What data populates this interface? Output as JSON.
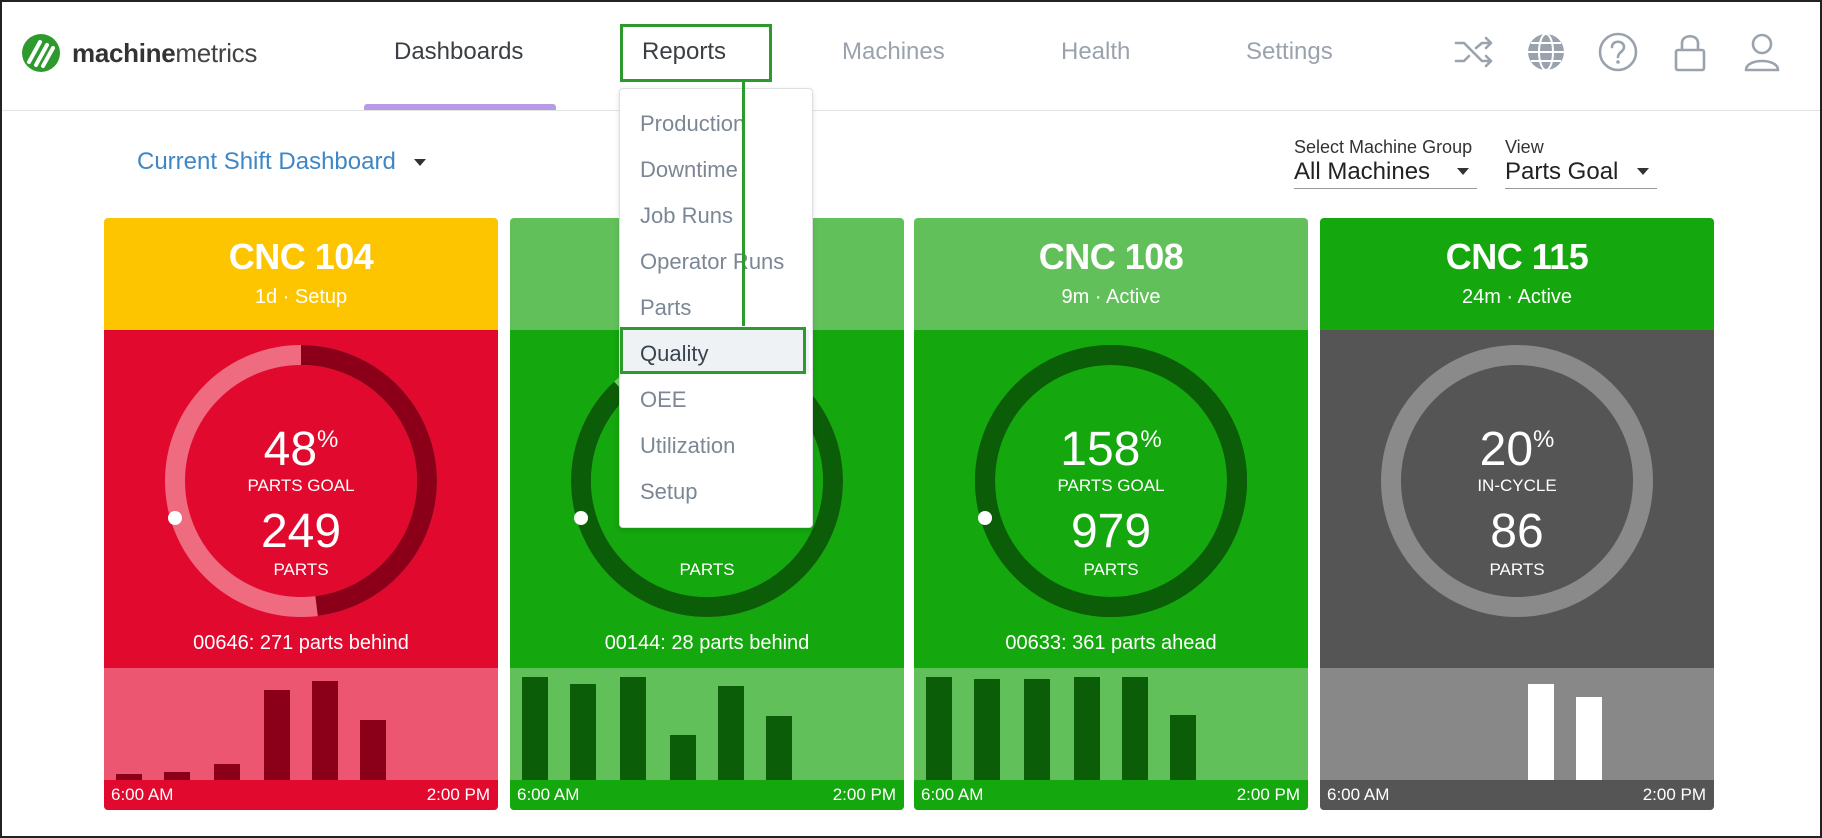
{
  "brand": {
    "name_bold": "machine",
    "name_rest": "metrics",
    "color": "#2e9a2e"
  },
  "nav": {
    "items": [
      {
        "label": "Dashboards",
        "state": "active"
      },
      {
        "label": "Reports",
        "state": "open"
      },
      {
        "label": "Machines",
        "state": "idle"
      },
      {
        "label": "Health",
        "state": "idle"
      },
      {
        "label": "Settings",
        "state": "idle"
      }
    ],
    "icons": [
      "shuffle-icon",
      "globe-icon",
      "help-icon",
      "lock-icon",
      "user-icon"
    ]
  },
  "reports_menu": {
    "items": [
      "Production",
      "Downtime",
      "Job Runs",
      "Operator Runs",
      "Parts",
      "Quality",
      "OEE",
      "Utilization",
      "Setup"
    ],
    "selected": "Quality"
  },
  "toolbar": {
    "dashboard_select": "Current Shift Dashboard",
    "machine_group": {
      "label": "Select Machine Group",
      "value": "All Machines"
    },
    "view": {
      "label": "View",
      "value": "Parts Goal"
    }
  },
  "cards": [
    {
      "title": "CNC 104",
      "subtitle": "1d · Setup",
      "percent": "48",
      "percent_label": "PARTS GOAL",
      "parts": "249",
      "parts_label": "PARTS",
      "status": "00646: 271 parts behind",
      "progress": 0.48,
      "bars": [
        0.05,
        0.07,
        0.14,
        0.8,
        0.88,
        0.54
      ],
      "time_start": "6:00 AM",
      "time_end": "2:00 PM",
      "colors": {
        "head": "#fdc500",
        "body": "#e2092e",
        "foot": "#ec5670",
        "strip": "#e2092e",
        "ring_track": "#ee6b80",
        "ring_fill": "#8b0018",
        "bar": "#8b0018"
      }
    },
    {
      "title": "",
      "subtitle": "",
      "percent": "",
      "percent_label": "",
      "parts": "",
      "parts_label": "PARTS",
      "status": "00144: 28 parts behind",
      "progress": 0.88,
      "bars": [
        0.92,
        0.86,
        0.92,
        0.4,
        0.84,
        0.57
      ],
      "time_start": "6:00 AM",
      "time_end": "2:00 PM",
      "colors": {
        "head": "#62c05a",
        "body": "#14a70e",
        "foot": "#62c05a",
        "strip": "#14a70e",
        "ring_track": "#6fd068",
        "ring_fill": "#0b5d08",
        "bar": "#0b5d08"
      }
    },
    {
      "title": "CNC 108",
      "subtitle": "9m · Active",
      "percent": "158",
      "percent_label": "PARTS GOAL",
      "parts": "979",
      "parts_label": "PARTS",
      "status": "00633: 361 parts ahead",
      "progress": 1.58,
      "bars": [
        0.92,
        0.9,
        0.9,
        0.92,
        0.92,
        0.58
      ],
      "time_start": "6:00 AM",
      "time_end": "2:00 PM",
      "colors": {
        "head": "#62c05a",
        "body": "#14a70e",
        "foot": "#62c05a",
        "strip": "#14a70e",
        "ring_track": "#0b5d08",
        "ring_fill": "#0b5d08",
        "bar": "#0b5d08"
      }
    },
    {
      "title": "CNC 115",
      "subtitle": "24m · Active",
      "percent": "20",
      "percent_label": "IN-CYCLE",
      "parts": "86",
      "parts_label": "PARTS",
      "status": "",
      "progress": 0,
      "bars": [
        0,
        0,
        0,
        0,
        0.86,
        0.74
      ],
      "time_start": "6:00 AM",
      "time_end": "2:00 PM",
      "colors": {
        "head": "#14a70e",
        "body": "#555555",
        "foot": "#888888",
        "strip": "#555555",
        "ring_track": "#8a8a8a",
        "ring_fill": "#8a8a8a",
        "bar": "#ffffff"
      }
    }
  ]
}
